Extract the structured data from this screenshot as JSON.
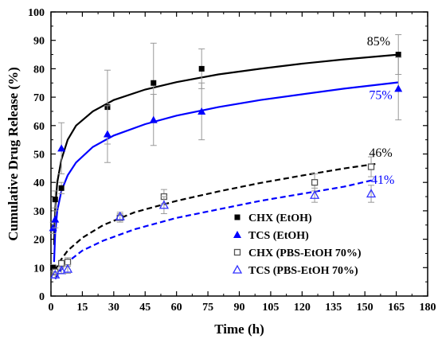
{
  "chart_data": {
    "type": "scatter",
    "title": "",
    "xlabel": "Time (h)",
    "ylabel": "Cumulative Drug Release (%)",
    "xlim": [
      0,
      180
    ],
    "ylim": [
      0,
      100
    ],
    "xticks": [
      0,
      15,
      30,
      45,
      60,
      75,
      90,
      105,
      120,
      135,
      150,
      165,
      180
    ],
    "yticks": [
      0,
      10,
      20,
      30,
      40,
      50,
      60,
      70,
      80,
      90,
      100
    ],
    "grid": false,
    "legend_position": "bottom-right",
    "series": [
      {
        "name": "CHX (EtOH)",
        "marker": "filled-square",
        "color": "#000000",
        "x": [
          1,
          2,
          5,
          27,
          49,
          72,
          166
        ],
        "y": [
          10,
          34,
          38,
          66.5,
          75,
          80,
          85
        ],
        "error": [
          1,
          3,
          2,
          13,
          14,
          7,
          7
        ],
        "fit": {
          "style": "solid",
          "color": "#000000",
          "x": [
            1.5,
            2,
            3,
            5,
            8,
            12,
            20,
            30,
            45,
            60,
            80,
            100,
            120,
            140,
            166
          ],
          "y": [
            18,
            31,
            40,
            48,
            55,
            60,
            65,
            69,
            72.7,
            75.3,
            78,
            80,
            81.8,
            83.3,
            85
          ]
        }
      },
      {
        "name": "TCS (EtOH)",
        "marker": "filled-triangle",
        "color": "#0000ff",
        "x": [
          1,
          2,
          5,
          27,
          49,
          72,
          166
        ],
        "y": [
          24,
          27,
          52,
          57,
          62,
          65,
          73
        ],
        "error": [
          2,
          3,
          9,
          10,
          9,
          10,
          11
        ],
        "fit": {
          "style": "solid",
          "color": "#0000ff",
          "x": [
            1.5,
            2,
            3,
            5,
            8,
            12,
            20,
            30,
            45,
            60,
            80,
            100,
            120,
            140,
            166
          ],
          "y": [
            12,
            22,
            30,
            37,
            42.5,
            47,
            52.5,
            56.5,
            60.5,
            63.5,
            66.5,
            69,
            71,
            73,
            75.2
          ]
        }
      },
      {
        "name": "CHX (PBS-EtOH 70%)",
        "marker": "open-square",
        "color": "#555555",
        "x": [
          2,
          5,
          8,
          33,
          54,
          126,
          153
        ],
        "y": [
          8.5,
          11.5,
          12,
          27.5,
          35,
          40,
          45.5
        ],
        "error": [
          1,
          1,
          1.5,
          1.5,
          2.5,
          3,
          3.5
        ],
        "fit": {
          "style": "dashed",
          "color": "#000000",
          "x": [
            2,
            4,
            8,
            15,
            25,
            40,
            60,
            80,
            100,
            120,
            140,
            155
          ],
          "y": [
            9,
            12,
            16,
            20.5,
            25,
            29.5,
            33.5,
            36.8,
            39.8,
            42.4,
            44.9,
            46.5
          ]
        }
      },
      {
        "name": "TCS (PBS-EtOH 70%)",
        "marker": "open-triangle",
        "color": "#3333ff",
        "x": [
          2,
          5,
          8,
          33,
          54,
          126,
          153
        ],
        "y": [
          7.5,
          9,
          9.5,
          28,
          32,
          35.5,
          36
        ],
        "error": [
          1,
          1,
          1.5,
          1.5,
          3,
          2.5,
          3
        ],
        "fit": {
          "style": "dashed",
          "color": "#0000ff",
          "x": [
            2,
            4,
            8,
            15,
            25,
            40,
            60,
            80,
            100,
            120,
            140,
            155
          ],
          "y": [
            6,
            8.5,
            12,
            16,
            19.5,
            23.5,
            27.5,
            30.5,
            33.5,
            36,
            38.5,
            41
          ]
        }
      }
    ],
    "annotations": [
      {
        "text": "85%",
        "x": 151,
        "y": 88.2,
        "color": "#000000"
      },
      {
        "text": "75%",
        "x": 152,
        "y": 69.3,
        "color": "#0000ff"
      },
      {
        "text": "46%",
        "x": 152,
        "y": 49,
        "color": "#000000"
      },
      {
        "text": "41%",
        "x": 153,
        "y": 39.5,
        "color": "#0000ff"
      }
    ]
  }
}
